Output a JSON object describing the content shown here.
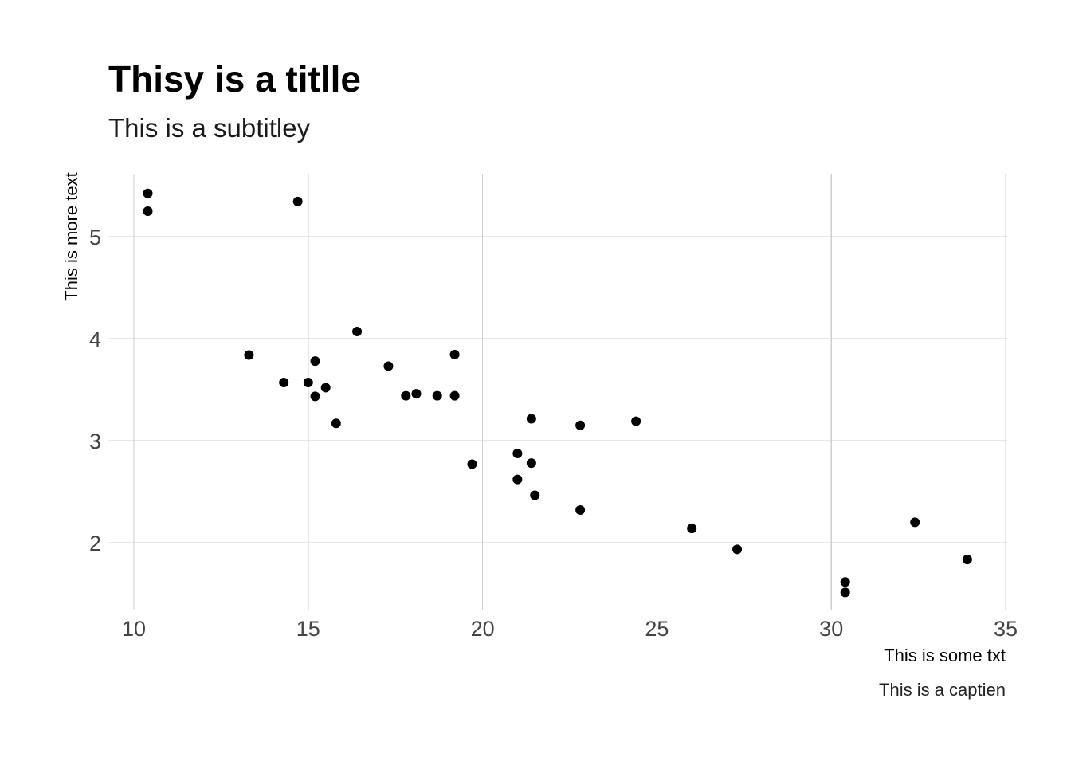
{
  "chart_data": {
    "type": "scatter",
    "title": "Thisy is a titlle",
    "subtitle": "This is a subtitley",
    "xlabel": "This is some txt",
    "ylabel": "This is more text",
    "caption": "This is a captien",
    "xlim": [
      10,
      35
    ],
    "ylim": [
      1.4,
      5.6
    ],
    "x_ticks": [
      10,
      15,
      20,
      25,
      30,
      35
    ],
    "y_ticks": [
      2,
      3,
      4,
      5
    ],
    "x_tick_labels": [
      "10",
      "15",
      "20",
      "25",
      "30",
      "35"
    ],
    "y_tick_labels": [
      "2",
      "3",
      "4",
      "5"
    ],
    "grid": true,
    "point_color": "#000000",
    "grid_color": "#cfcfcf",
    "points": [
      {
        "x": 10.4,
        "y": 5.424
      },
      {
        "x": 10.4,
        "y": 5.25
      },
      {
        "x": 14.7,
        "y": 5.345
      },
      {
        "x": 16.4,
        "y": 4.07
      },
      {
        "x": 13.3,
        "y": 3.84
      },
      {
        "x": 19.2,
        "y": 3.845
      },
      {
        "x": 15.2,
        "y": 3.78
      },
      {
        "x": 17.3,
        "y": 3.73
      },
      {
        "x": 14.3,
        "y": 3.57
      },
      {
        "x": 15.0,
        "y": 3.57
      },
      {
        "x": 15.5,
        "y": 3.52
      },
      {
        "x": 18.1,
        "y": 3.46
      },
      {
        "x": 15.2,
        "y": 3.435
      },
      {
        "x": 17.8,
        "y": 3.44
      },
      {
        "x": 18.7,
        "y": 3.44
      },
      {
        "x": 19.2,
        "y": 3.44
      },
      {
        "x": 21.4,
        "y": 3.215
      },
      {
        "x": 24.4,
        "y": 3.19
      },
      {
        "x": 15.8,
        "y": 3.17
      },
      {
        "x": 22.8,
        "y": 3.15
      },
      {
        "x": 21.0,
        "y": 2.875
      },
      {
        "x": 21.4,
        "y": 2.78
      },
      {
        "x": 19.7,
        "y": 2.77
      },
      {
        "x": 21.0,
        "y": 2.62
      },
      {
        "x": 21.5,
        "y": 2.465
      },
      {
        "x": 22.8,
        "y": 2.32
      },
      {
        "x": 32.4,
        "y": 2.2
      },
      {
        "x": 26.0,
        "y": 2.14
      },
      {
        "x": 27.3,
        "y": 1.935
      },
      {
        "x": 33.9,
        "y": 1.835
      },
      {
        "x": 30.4,
        "y": 1.615
      },
      {
        "x": 30.4,
        "y": 1.513
      }
    ]
  }
}
